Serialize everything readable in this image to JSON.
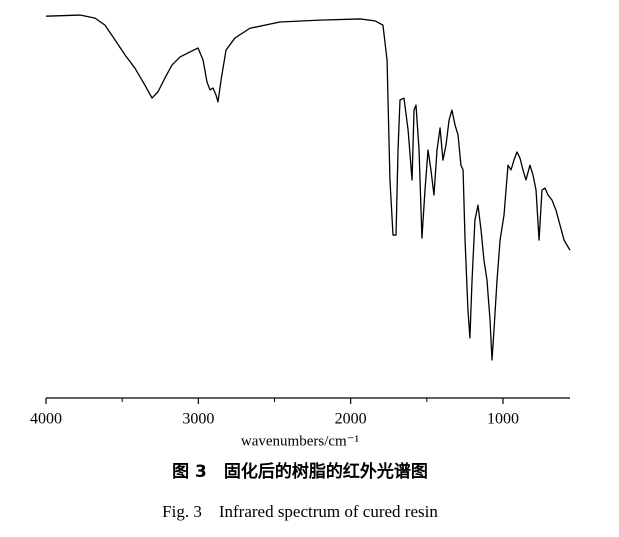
{
  "chart_data": {
    "type": "line",
    "xlabel": "wavenumbers/cm⁻¹",
    "caption_cn": "图 3　固化后的树脂的红外光谱图",
    "caption_en": "Fig. 3　Infrared spectrum of cured resin",
    "xlim": [
      4000,
      560
    ],
    "ylim": [
      0,
      100
    ],
    "xticks": [
      4000,
      3000,
      2000,
      1000
    ],
    "xminor_ticks": [
      3500,
      2500,
      1500
    ],
    "color": "#000000",
    "x": [
      4000,
      3777,
      3678,
      3613,
      3547,
      3481,
      3416,
      3350,
      3304,
      3265,
      3219,
      3173,
      3120,
      3055,
      3002,
      2969,
      2943,
      2923,
      2904,
      2884,
      2871,
      2851,
      2818,
      2759,
      2661,
      2464,
      2201,
      1939,
      1840,
      1788,
      1761,
      1742,
      1722,
      1702,
      1689,
      1676,
      1650,
      1623,
      1597,
      1584,
      1571,
      1551,
      1532,
      1512,
      1492,
      1473,
      1453,
      1433,
      1413,
      1394,
      1374,
      1354,
      1335,
      1315,
      1295,
      1276,
      1262,
      1249,
      1230,
      1217,
      1203,
      1184,
      1164,
      1144,
      1125,
      1105,
      1085,
      1072,
      1059,
      1039,
      1019,
      993,
      967,
      947,
      928,
      908,
      888,
      869,
      849,
      823,
      803,
      783,
      763,
      744,
      724,
      704,
      678,
      652,
      626,
      599,
      580,
      560
    ],
    "values": [
      98.4,
      98.7,
      97.9,
      96.1,
      92.3,
      88.4,
      85.0,
      80.6,
      77.3,
      78.9,
      82.5,
      85.8,
      87.9,
      89.2,
      90.2,
      87.1,
      81.4,
      79.4,
      79.9,
      78.1,
      76.3,
      81.9,
      89.7,
      92.8,
      95.3,
      96.9,
      97.4,
      97.7,
      97.2,
      96.1,
      87.1,
      56.2,
      42.0,
      42.0,
      63.9,
      76.8,
      77.3,
      69.1,
      56.2,
      74.2,
      75.5,
      63.9,
      41.2,
      53.6,
      63.9,
      58.8,
      52.3,
      63.9,
      69.6,
      61.3,
      65.2,
      71.6,
      74.2,
      70.4,
      67.8,
      60.0,
      58.8,
      40.7,
      22.7,
      15.5,
      30.4,
      45.9,
      49.7,
      43.3,
      35.6,
      30.4,
      20.1,
      9.8,
      17.5,
      30.4,
      40.7,
      47.2,
      60.0,
      58.8,
      61.3,
      63.4,
      61.8,
      58.8,
      56.2,
      60.0,
      57.5,
      53.6,
      40.7,
      53.6,
      54.1,
      52.3,
      51.0,
      48.4,
      44.6,
      40.7,
      39.4,
      38.1
    ]
  }
}
